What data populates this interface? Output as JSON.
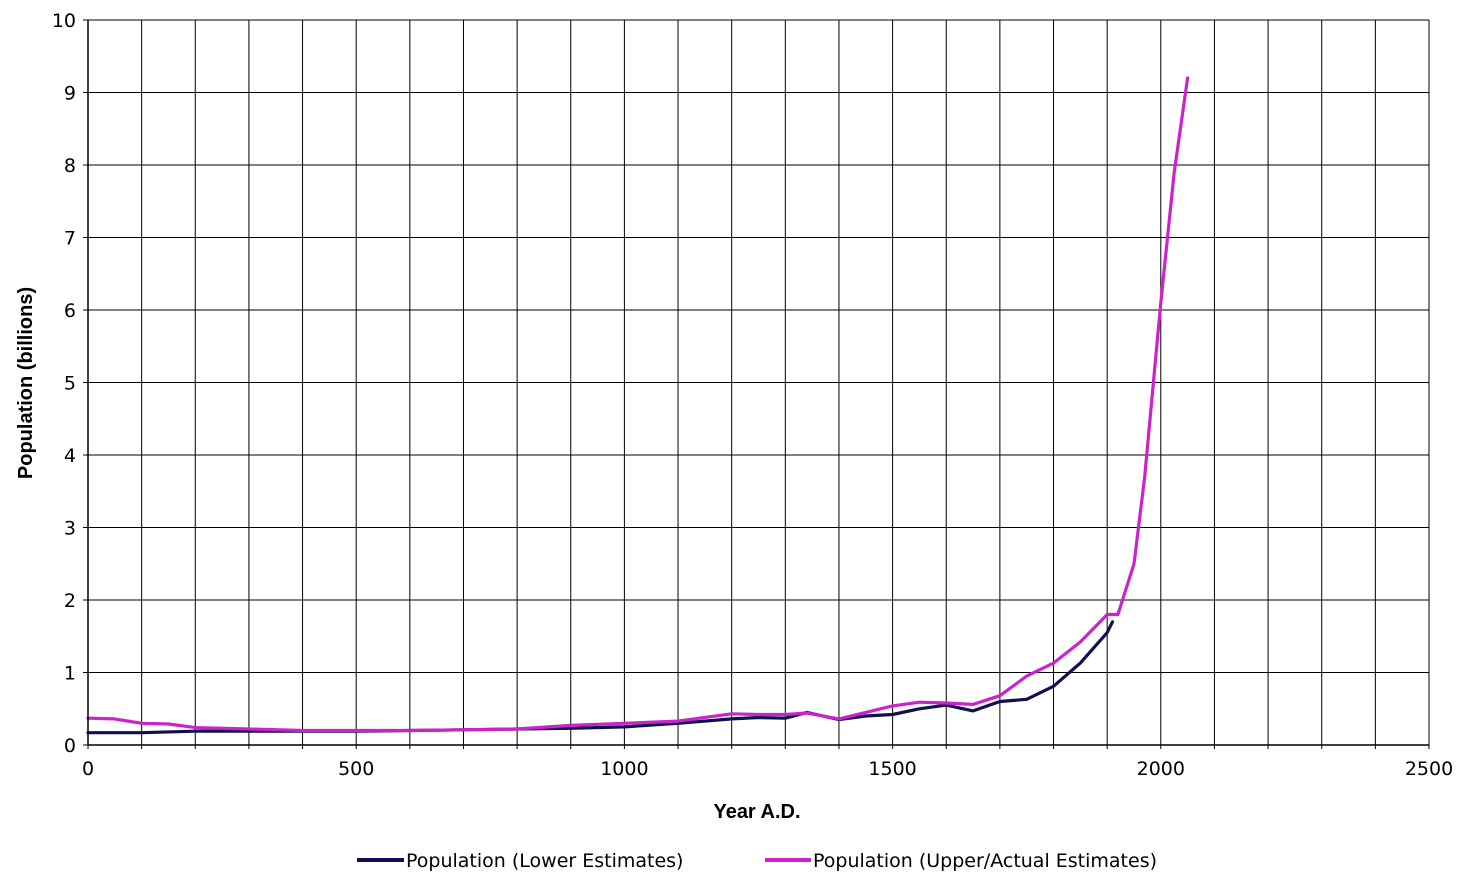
{
  "chart_data": {
    "type": "line",
    "xlabel": "Year A.D.",
    "ylabel": "Population (billions)",
    "xlim": [
      0,
      2500
    ],
    "ylim": [
      0,
      10
    ],
    "x_ticks": [
      "0",
      "500",
      "1000",
      "1500",
      "2000",
      "2500"
    ],
    "y_ticks": [
      "0",
      "1",
      "2",
      "3",
      "4",
      "5",
      "6",
      "7",
      "8",
      "9",
      "10"
    ],
    "grid": true,
    "legend_position": "bottom",
    "colors": {
      "grid": "#000000",
      "lower": "#101050",
      "upper": "#cc22cc"
    },
    "series": [
      {
        "name": "Population (Lower Estimates)",
        "color": "#101050",
        "points": [
          [
            0,
            0.17
          ],
          [
            100,
            0.17
          ],
          [
            200,
            0.19
          ],
          [
            300,
            0.19
          ],
          [
            400,
            0.19
          ],
          [
            500,
            0.19
          ],
          [
            600,
            0.2
          ],
          [
            700,
            0.21
          ],
          [
            800,
            0.22
          ],
          [
            900,
            0.23
          ],
          [
            1000,
            0.25
          ],
          [
            1100,
            0.3
          ],
          [
            1200,
            0.36
          ],
          [
            1250,
            0.38
          ],
          [
            1300,
            0.37
          ],
          [
            1340,
            0.45
          ],
          [
            1400,
            0.35
          ],
          [
            1450,
            0.4
          ],
          [
            1500,
            0.42
          ],
          [
            1550,
            0.5
          ],
          [
            1600,
            0.55
          ],
          [
            1650,
            0.47
          ],
          [
            1700,
            0.6
          ],
          [
            1750,
            0.63
          ],
          [
            1800,
            0.81
          ],
          [
            1850,
            1.13
          ],
          [
            1900,
            1.55
          ],
          [
            1910,
            1.7
          ]
        ]
      },
      {
        "name": "Population (Upper/Actual Estimates)",
        "color": "#cc22cc",
        "points": [
          [
            0,
            0.37
          ],
          [
            50,
            0.36
          ],
          [
            100,
            0.3
          ],
          [
            150,
            0.29
          ],
          [
            200,
            0.24
          ],
          [
            300,
            0.22
          ],
          [
            400,
            0.2
          ],
          [
            500,
            0.2
          ],
          [
            600,
            0.2
          ],
          [
            700,
            0.21
          ],
          [
            800,
            0.22
          ],
          [
            900,
            0.27
          ],
          [
            1000,
            0.3
          ],
          [
            1100,
            0.33
          ],
          [
            1200,
            0.43
          ],
          [
            1250,
            0.42
          ],
          [
            1300,
            0.42
          ],
          [
            1340,
            0.44
          ],
          [
            1400,
            0.36
          ],
          [
            1450,
            0.45
          ],
          [
            1500,
            0.54
          ],
          [
            1550,
            0.59
          ],
          [
            1600,
            0.58
          ],
          [
            1650,
            0.56
          ],
          [
            1700,
            0.68
          ],
          [
            1750,
            0.95
          ],
          [
            1800,
            1.13
          ],
          [
            1850,
            1.42
          ],
          [
            1900,
            1.8
          ],
          [
            1920,
            1.8
          ],
          [
            1950,
            2.5
          ],
          [
            1970,
            3.7
          ],
          [
            1990,
            5.3
          ],
          [
            2000,
            6.1
          ],
          [
            2025,
            7.9
          ],
          [
            2050,
            9.2
          ]
        ]
      }
    ]
  }
}
